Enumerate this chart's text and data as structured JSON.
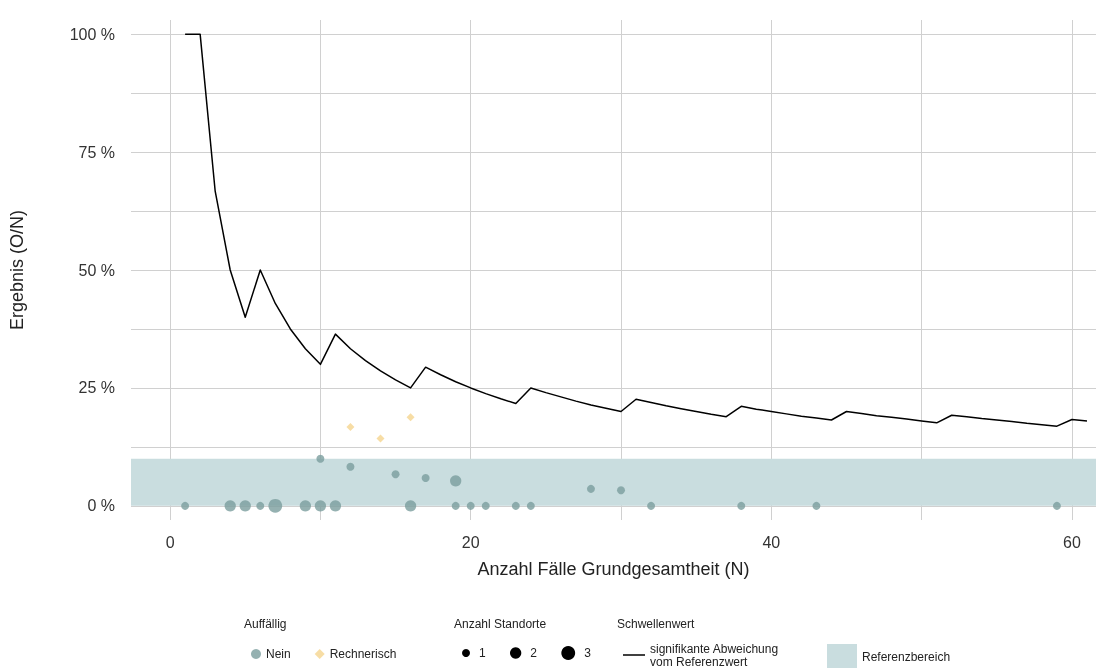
{
  "chart_data": {
    "type": "scatter",
    "xlabel": "Anzahl Fälle Grundgesamtheit (N)",
    "ylabel": "Ergebnis (O/N)",
    "legend_title": [
      "Auffällig",
      "Anzahl Standorte",
      "Schwellenwert"
    ],
    "xlim": [
      -2.6,
      61.6
    ],
    "xticks": [
      0,
      {
        "value": 10,
        "label": null
      },
      20,
      {
        "value": 30,
        "label": null
      },
      40,
      {
        "value": 50,
        "label": null
      },
      60
    ],
    "ylim": [
      -3,
      103
    ],
    "yticks": [
      {
        "value": 0,
        "label": "0 %"
      },
      {
        "value": 12.5,
        "label": null
      },
      {
        "value": 25,
        "label": "25 %"
      },
      {
        "value": 37.5,
        "label": null
      },
      {
        "value": 50,
        "label": "50 %"
      },
      {
        "value": 62.5,
        "label": null
      },
      {
        "value": 75,
        "label": "75 %"
      },
      {
        "value": 87.5,
        "label": null
      },
      {
        "value": 100,
        "label": "100 %"
      }
    ],
    "grid": true,
    "legend": "bottom",
    "size_legend": [
      1,
      2,
      3
    ],
    "bands": [
      {
        "axis": "y",
        "from": 0,
        "to": 10,
        "label": "Referenzbereich",
        "color": "#c9dddf"
      }
    ],
    "series": [
      {
        "type": "bubble",
        "name": "Nein",
        "color": "#7a9e9e",
        "marker": "circle",
        "x": [
          1,
          4,
          5,
          6,
          7,
          9,
          10,
          11,
          16,
          19,
          20,
          21,
          23,
          24,
          32,
          38,
          43,
          59,
          10,
          12,
          15,
          17,
          19,
          28,
          30
        ],
        "values": [
          0,
          0,
          0,
          0,
          0,
          0,
          0,
          0,
          0,
          0,
          0,
          0,
          0,
          0,
          0,
          0,
          0,
          0,
          10,
          8.3,
          6.7,
          5.9,
          5.3,
          3.6,
          3.3
        ],
        "sizes": [
          1,
          2,
          2,
          1,
          3,
          2,
          2,
          2,
          2,
          1,
          1,
          1,
          1,
          1,
          1,
          1,
          1,
          1,
          1,
          1,
          1,
          1,
          2,
          1,
          1
        ]
      },
      {
        "type": "scatter",
        "name": "Rechnerisch",
        "color": "#f5d48f",
        "marker": "diamond",
        "x": [
          12,
          14,
          16
        ],
        "values": [
          16.7,
          14.3,
          18.8
        ]
      },
      {
        "type": "line",
        "name": "signifikante Abweichung vom Referenzwert",
        "color": "#000000",
        "line_style": "solid",
        "marker": "none",
        "x": [
          1,
          2,
          3,
          4,
          5,
          6,
          7,
          8,
          9,
          10,
          11,
          12,
          13,
          14,
          15,
          16,
          17,
          18,
          19,
          20,
          21,
          22,
          23,
          24,
          25,
          26,
          27,
          28,
          29,
          30,
          31,
          32,
          33,
          34,
          35,
          36,
          37,
          38,
          39,
          40,
          41,
          42,
          43,
          44,
          45,
          46,
          47,
          48,
          49,
          50,
          51,
          52,
          53,
          54,
          55,
          56,
          57,
          58,
          59,
          60,
          61
        ],
        "values": [
          100,
          100,
          66.7,
          50,
          40,
          50,
          42.9,
          37.5,
          33.3,
          30,
          36.4,
          33.3,
          30.8,
          28.6,
          26.7,
          25,
          29.4,
          27.8,
          26.3,
          25,
          23.8,
          22.7,
          21.7,
          25,
          24,
          23.1,
          22.2,
          21.4,
          20.7,
          20,
          22.6,
          21.9,
          21.2,
          20.6,
          20,
          19.4,
          18.9,
          21.1,
          20.5,
          20,
          19.5,
          19,
          18.6,
          18.2,
          20,
          19.6,
          19.1,
          18.8,
          18.4,
          18,
          17.6,
          19.2,
          18.9,
          18.5,
          18.2,
          17.9,
          17.5,
          17.2,
          16.9,
          18.3,
          18
        ]
      }
    ]
  }
}
